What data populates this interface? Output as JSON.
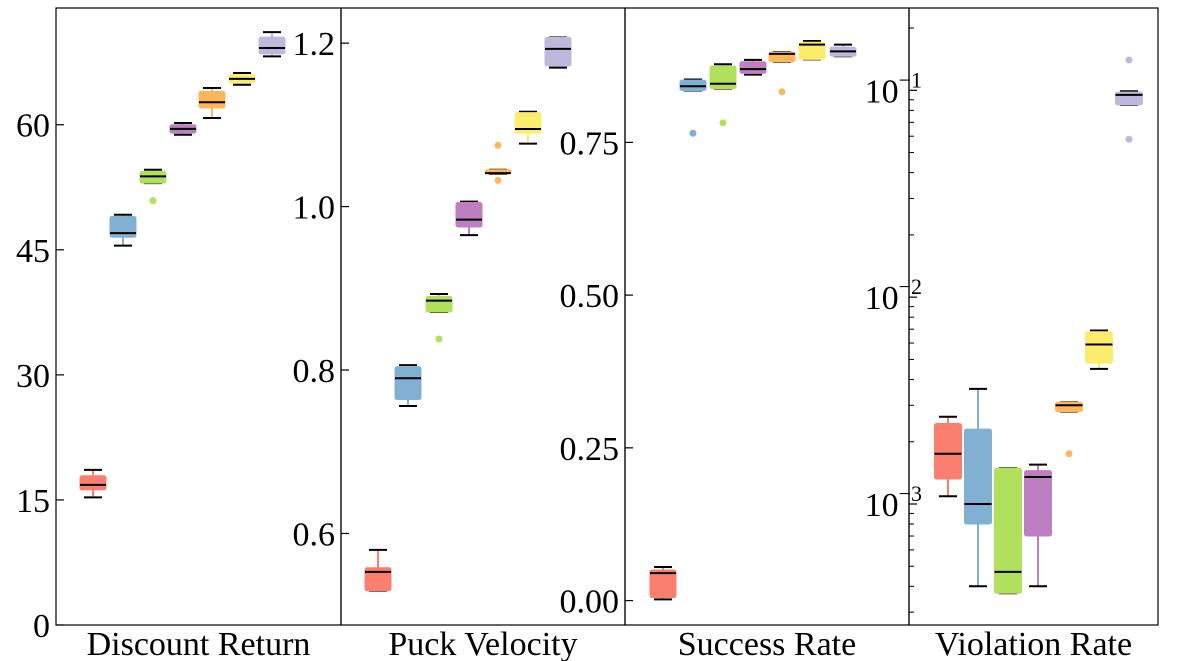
{
  "colors": [
    "#fa7f6f",
    "#82b0d2",
    "#b0e05c",
    "#be7fc2",
    "#ffb65a",
    "#fcec6c",
    "#beb8dc"
  ],
  "chart_data": [
    {
      "type": "box",
      "xlabel": "Discount Return",
      "yscale": "linear",
      "ylim": [
        0,
        74
      ],
      "yticks": [
        0,
        15,
        30,
        45,
        60
      ],
      "ytick_labels": [
        "0",
        "15",
        "30",
        "45",
        "60"
      ],
      "boxes": [
        {
          "q1": 16.2,
          "median": 16.8,
          "q3": 17.9,
          "whislo": 15.3,
          "whishi": 18.6,
          "fliers": []
        },
        {
          "q1": 46.5,
          "median": 47.0,
          "q3": 49.0,
          "whislo": 45.5,
          "whishi": 49.2,
          "fliers": []
        },
        {
          "q1": 53.0,
          "median": 53.8,
          "q3": 54.4,
          "whislo": 53.0,
          "whishi": 54.6,
          "fliers": [
            50.9
          ]
        },
        {
          "q1": 59.0,
          "median": 59.5,
          "q3": 60.0,
          "whislo": 58.8,
          "whishi": 60.2,
          "fliers": []
        },
        {
          "q1": 62.0,
          "median": 62.7,
          "q3": 64.0,
          "whislo": 60.8,
          "whishi": 64.4,
          "fliers": []
        },
        {
          "q1": 65.0,
          "median": 65.5,
          "q3": 66.0,
          "whislo": 64.8,
          "whishi": 66.2,
          "fliers": []
        },
        {
          "q1": 68.5,
          "median": 69.2,
          "q3": 70.5,
          "whislo": 68.2,
          "whishi": 71.1,
          "fliers": []
        }
      ]
    },
    {
      "type": "box",
      "xlabel": "Puck Velocity",
      "yscale": "linear",
      "ylim": [
        0.488,
        1.243
      ],
      "yticks": [
        0.6,
        0.8,
        1.0,
        1.2
      ],
      "ytick_labels": [
        "0.6",
        "0.8",
        "1.0",
        "1.2"
      ],
      "boxes": [
        {
          "q1": 0.53,
          "median": 0.553,
          "q3": 0.558,
          "whislo": 0.53,
          "whishi": 0.58,
          "fliers": []
        },
        {
          "q1": 0.764,
          "median": 0.79,
          "q3": 0.804,
          "whislo": 0.756,
          "whishi": 0.806,
          "fliers": []
        },
        {
          "q1": 0.871,
          "median": 0.885,
          "q3": 0.89,
          "whislo": 0.871,
          "whishi": 0.893,
          "fliers": [
            0.838
          ]
        },
        {
          "q1": 0.975,
          "median": 0.984,
          "q3": 1.005,
          "whislo": 0.965,
          "whishi": 1.006,
          "fliers": []
        },
        {
          "q1": 1.04,
          "median": 1.041,
          "q3": 1.045,
          "whislo": 1.04,
          "whishi": 1.045,
          "fliers": [
            1.075,
            1.032
          ]
        },
        {
          "q1": 1.09,
          "median": 1.095,
          "q3": 1.115,
          "whislo": 1.077,
          "whishi": 1.116,
          "fliers": []
        },
        {
          "q1": 1.172,
          "median": 1.193,
          "q3": 1.207,
          "whislo": 1.17,
          "whishi": 1.207,
          "fliers": []
        }
      ]
    },
    {
      "type": "box",
      "xlabel": "Success Rate",
      "yscale": "linear",
      "ylim": [
        -0.04,
        0.97
      ],
      "yticks": [
        0.0,
        0.25,
        0.5,
        0.75
      ],
      "ytick_labels": [
        "0.00",
        "0.25",
        "0.50",
        "0.75"
      ],
      "boxes": [
        {
          "q1": 0.005,
          "median": 0.045,
          "q3": 0.05,
          "whislo": 0.002,
          "whishi": 0.055,
          "fliers": []
        },
        {
          "q1": 0.835,
          "median": 0.842,
          "q3": 0.852,
          "whislo": 0.835,
          "whishi": 0.853,
          "fliers": [
            0.765
          ]
        },
        {
          "q1": 0.838,
          "median": 0.846,
          "q3": 0.875,
          "whislo": 0.838,
          "whishi": 0.878,
          "fliers": [
            0.782
          ]
        },
        {
          "q1": 0.863,
          "median": 0.87,
          "q3": 0.882,
          "whislo": 0.861,
          "whishi": 0.885,
          "fliers": []
        },
        {
          "q1": 0.882,
          "median": 0.895,
          "q3": 0.898,
          "whislo": 0.882,
          "whishi": 0.898,
          "fliers": [
            0.833
          ]
        },
        {
          "q1": 0.886,
          "median": 0.91,
          "q3": 0.914,
          "whislo": 0.886,
          "whishi": 0.916,
          "fliers": []
        },
        {
          "q1": 0.891,
          "median": 0.899,
          "q3": 0.906,
          "whislo": 0.891,
          "whishi": 0.91,
          "fliers": []
        }
      ]
    },
    {
      "type": "box",
      "xlabel": "Violation Rate",
      "yscale": "log",
      "ylim": [
        0.00026,
        0.25
      ],
      "yticks": [
        0.001,
        0.01,
        0.1
      ],
      "ytick_labels": [
        "10",
        "10",
        "10"
      ],
      "ytick_exponents": [
        "−3",
        "−2",
        "−1"
      ],
      "boxes": [
        {
          "q1": 0.00132,
          "median": 0.00175,
          "q3": 0.00245,
          "whislo": 0.00109,
          "whishi": 0.00264,
          "fliers": []
        },
        {
          "q1": 0.0008,
          "median": 0.001,
          "q3": 0.0023,
          "whislo": 0.0004,
          "whishi": 0.0036,
          "fliers": []
        },
        {
          "q1": 0.00037,
          "median": 0.00047,
          "q3": 0.00149,
          "whislo": 0.00037,
          "whishi": 0.00149,
          "fliers": []
        },
        {
          "q1": 0.0007,
          "median": 0.00135,
          "q3": 0.00145,
          "whislo": 0.0004,
          "whishi": 0.00155,
          "fliers": []
        },
        {
          "q1": 0.0028,
          "median": 0.003,
          "q3": 0.0031,
          "whislo": 0.0028,
          "whishi": 0.0031,
          "fliers": [
            0.00175
          ]
        },
        {
          "q1": 0.0048,
          "median": 0.0059,
          "q3": 0.0068,
          "whislo": 0.0045,
          "whishi": 0.0069,
          "fliers": []
        },
        {
          "q1": 0.085,
          "median": 0.095,
          "q3": 0.098,
          "whislo": 0.085,
          "whishi": 0.099,
          "fliers": [
            0.14,
            0.058
          ]
        }
      ]
    }
  ]
}
